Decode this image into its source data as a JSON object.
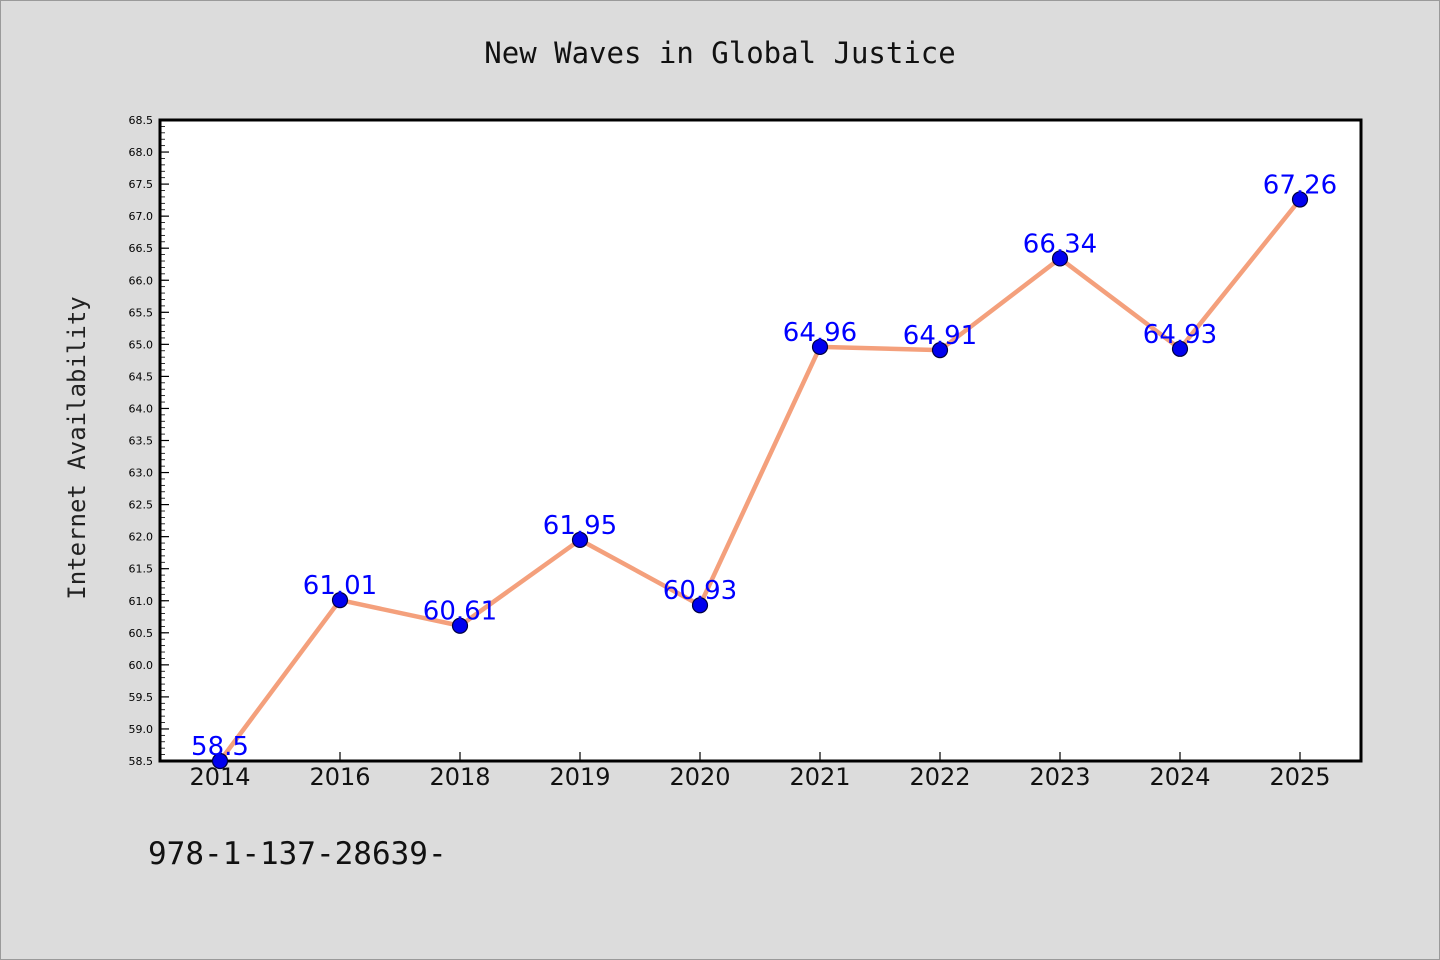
{
  "chart_data": {
    "type": "line",
    "title": "New Waves in Global Justice",
    "xlabel": "",
    "ylabel": "Internet Availability",
    "categories": [
      "2014",
      "2016",
      "2018",
      "2019",
      "2020",
      "2021",
      "2022",
      "2023",
      "2024",
      "2025"
    ],
    "values": [
      58.5,
      61.01,
      60.61,
      61.95,
      60.93,
      64.96,
      64.91,
      66.34,
      64.93,
      67.26
    ],
    "data_labels": [
      "58.5",
      "61.01",
      "60.61",
      "61.95",
      "60.93",
      "64.96",
      "64.91",
      "66.34",
      "64.93",
      "67.26"
    ],
    "ylim": [
      58.5,
      68.5
    ],
    "y_ticks": [
      "58.5",
      "59.0",
      "59.5",
      "60.0",
      "60.5",
      "61.0",
      "61.5",
      "62.0",
      "62.5",
      "63.0",
      "63.5",
      "64.0",
      "64.5",
      "65.0",
      "65.5",
      "66.0",
      "66.5",
      "67.0",
      "67.5",
      "68.0",
      "68.5"
    ],
    "grid": false,
    "legend": "none",
    "colors": {
      "line": "#f4a07c",
      "marker_fill": "#0000ee",
      "marker_edge": "#000040",
      "data_label": "#0000ff",
      "background": "#dcdcdc",
      "plot_background": "#ffffff"
    }
  },
  "footer_text": "978-1-137-28639-"
}
